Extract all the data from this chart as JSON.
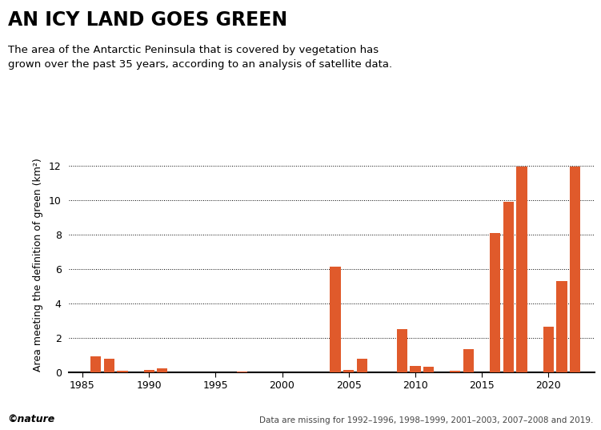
{
  "title": "AN ICY LAND GOES GREEN",
  "subtitle": "The area of the Antarctic Peninsula that is covered by vegetation has\ngrown over the past 35 years, according to an analysis of satellite data.",
  "ylabel": "Area meeting the definition of green (km²)",
  "footnote": "Data are missing for 1992–1996, 1998–1999, 2001–2003, 2007–2008 and 2019.",
  "nature_label": "©nature",
  "bar_color": "#e05a2b",
  "years": [
    1986,
    1987,
    1988,
    1990,
    1991,
    1997,
    2004,
    2005,
    2006,
    2009,
    2010,
    2011,
    2013,
    2014,
    2016,
    2017,
    2018,
    2020,
    2021,
    2022
  ],
  "values": [
    0.9,
    0.78,
    0.05,
    0.1,
    0.22,
    0.04,
    6.1,
    0.1,
    0.77,
    2.5,
    0.35,
    0.3,
    0.05,
    1.35,
    8.1,
    9.9,
    11.95,
    2.62,
    5.3,
    11.95
  ],
  "xlim": [
    1984,
    2023.5
  ],
  "ylim": [
    0,
    12.5
  ],
  "yticks": [
    0,
    2,
    4,
    6,
    8,
    10,
    12
  ],
  "xticks": [
    1985,
    1990,
    1995,
    2000,
    2005,
    2010,
    2015,
    2020
  ],
  "bar_width": 0.8,
  "title_fontsize": 17,
  "subtitle_fontsize": 9.5,
  "ylabel_fontsize": 9,
  "tick_fontsize": 9,
  "footnote_fontsize": 7.5,
  "nature_fontsize": 9
}
